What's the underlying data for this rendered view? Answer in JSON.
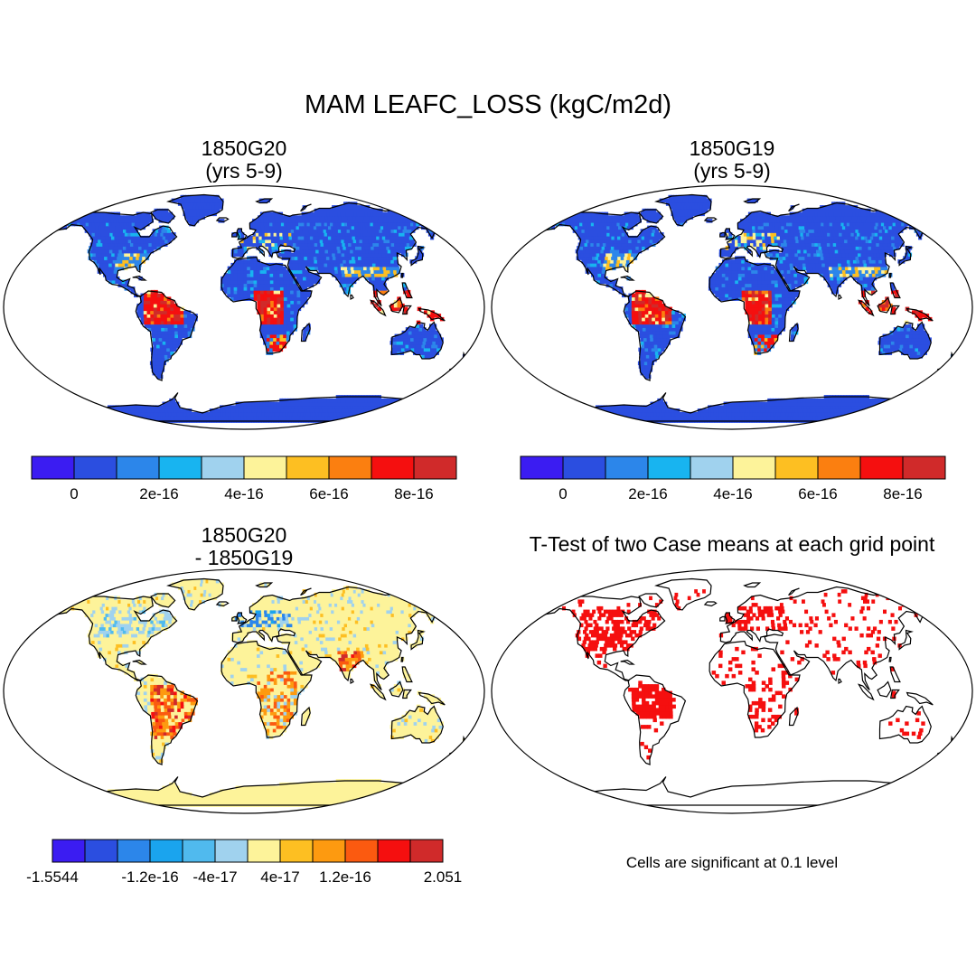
{
  "title": "MAM LEAFC_LOSS (kgC/m2d)",
  "panels": [
    {
      "id": "a",
      "title_line1": "1850G20",
      "title_line2": "(yrs 5-9)"
    },
    {
      "id": "b",
      "title_line1": "1850G19",
      "title_line2": "(yrs 5-9)"
    },
    {
      "id": "c",
      "title_line1": "1850G20",
      "title_line2": "- 1850G19"
    },
    {
      "id": "d",
      "title_line1": "T-Test of two Case means at each grid point"
    }
  ],
  "colorbar_top": {
    "colors": [
      "#3b1cf2",
      "#2b4ee0",
      "#2c86ea",
      "#18b4f0",
      "#a0d2ee",
      "#fdf39a",
      "#fdbf22",
      "#fb7f10",
      "#f50f0f",
      "#d02a2a"
    ],
    "labels": [
      "0",
      "2e-16",
      "4e-16",
      "6e-16",
      "8e-16"
    ]
  },
  "colorbar_diff": {
    "colors": [
      "#3b1cf2",
      "#2b4ee0",
      "#2c86ea",
      "#1aa4ee",
      "#50baee",
      "#a0d2ee",
      "#fdf39a",
      "#fdbf22",
      "#fd9a10",
      "#fb5a10",
      "#f50f0f",
      "#d02a2a"
    ],
    "labels": [
      "-1.5544",
      "-1.2e-16",
      "-4e-17",
      "4e-17",
      "1.2e-16",
      "2.051"
    ]
  },
  "significance_note": "Cells are significant at 0.1 level",
  "colors": {
    "ocean": "#ffffff",
    "land_base_top": "#2b4ee0",
    "land_base_diff": "#fdf39a",
    "significant": "#f50f0f"
  }
}
